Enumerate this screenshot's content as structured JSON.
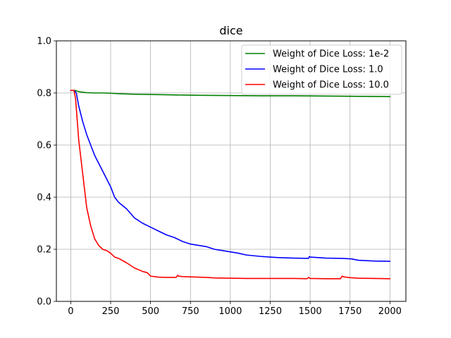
{
  "chart_data": {
    "type": "line",
    "title": "dice",
    "xlabel": "",
    "ylabel": "",
    "xlim": [
      -90,
      2100
    ],
    "ylim": [
      0.0,
      1.0
    ],
    "xticks": [
      0,
      250,
      500,
      750,
      1000,
      1250,
      1500,
      1750,
      2000
    ],
    "xtick_labels": [
      "0",
      "250",
      "500",
      "750",
      "1000",
      "1250",
      "1500",
      "1750",
      "2000"
    ],
    "yticks": [
      0.0,
      0.2,
      0.4,
      0.6,
      0.8,
      1.0
    ],
    "ytick_labels": [
      "0.0",
      "0.2",
      "0.4",
      "0.6",
      "0.8",
      "1.0"
    ],
    "grid": true,
    "legend_position": "top-right",
    "series": [
      {
        "name": "Weight of Dice Loss: 1e-2",
        "color": "#008000",
        "x": [
          0,
          25,
          50,
          100,
          150,
          200,
          250,
          300,
          400,
          500,
          600,
          700,
          800,
          1000,
          1200,
          1400,
          1600,
          1800,
          2000
        ],
        "y": [
          0.81,
          0.81,
          0.805,
          0.801,
          0.8,
          0.8,
          0.799,
          0.797,
          0.795,
          0.794,
          0.793,
          0.792,
          0.791,
          0.79,
          0.789,
          0.789,
          0.788,
          0.787,
          0.786
        ]
      },
      {
        "name": "Weight of Dice Loss: 1.0",
        "color": "#0000ff",
        "x": [
          0,
          20,
          35,
          50,
          75,
          100,
          125,
          150,
          175,
          200,
          225,
          250,
          275,
          300,
          350,
          400,
          450,
          500,
          550,
          600,
          650,
          700,
          750,
          800,
          850,
          900,
          950,
          1000,
          1050,
          1100,
          1150,
          1200,
          1300,
          1400,
          1490,
          1495,
          1500,
          1550,
          1600,
          1700,
          1760,
          1800,
          1900,
          2000
        ],
        "y": [
          0.81,
          0.81,
          0.8,
          0.75,
          0.69,
          0.64,
          0.6,
          0.56,
          0.53,
          0.5,
          0.47,
          0.44,
          0.4,
          0.38,
          0.355,
          0.32,
          0.3,
          0.285,
          0.27,
          0.255,
          0.245,
          0.23,
          0.22,
          0.215,
          0.21,
          0.2,
          0.195,
          0.19,
          0.185,
          0.178,
          0.175,
          0.172,
          0.168,
          0.166,
          0.165,
          0.172,
          0.17,
          0.168,
          0.166,
          0.165,
          0.163,
          0.158,
          0.155,
          0.154
        ]
      },
      {
        "name": "Weight of Dice Loss: 10.0",
        "color": "#ff0000",
        "x": [
          0,
          20,
          30,
          50,
          75,
          100,
          125,
          150,
          175,
          200,
          225,
          250,
          275,
          300,
          350,
          400,
          450,
          480,
          500,
          550,
          600,
          660,
          670,
          675,
          700,
          800,
          850,
          900,
          1000,
          1100,
          1200,
          1300,
          1400,
          1480,
          1490,
          1500,
          1600,
          1690,
          1700,
          1710,
          1750,
          1800,
          1900,
          2000
        ],
        "y": [
          0.81,
          0.81,
          0.78,
          0.62,
          0.49,
          0.36,
          0.29,
          0.24,
          0.215,
          0.2,
          0.195,
          0.185,
          0.17,
          0.165,
          0.148,
          0.128,
          0.115,
          0.11,
          0.097,
          0.093,
          0.092,
          0.092,
          0.1,
          0.097,
          0.095,
          0.093,
          0.092,
          0.09,
          0.089,
          0.088,
          0.088,
          0.088,
          0.088,
          0.087,
          0.092,
          0.088,
          0.087,
          0.087,
          0.097,
          0.094,
          0.091,
          0.089,
          0.088,
          0.087
        ]
      }
    ]
  }
}
